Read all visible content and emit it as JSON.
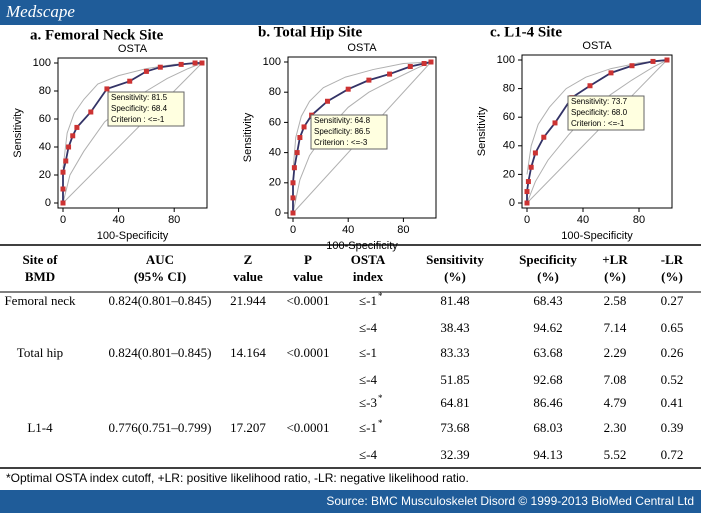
{
  "header": {
    "brand": "Medscape"
  },
  "chart_data": [
    {
      "type": "line",
      "panel_label": "a. Femoral Neck Site",
      "title": "OSTA",
      "xlabel": "100-Specificity",
      "ylabel": "Sensitivity",
      "xlim": [
        0,
        100
      ],
      "ylim": [
        0,
        100
      ],
      "xticks": [
        0,
        40,
        80
      ],
      "yticks": [
        0,
        20,
        40,
        60,
        80,
        100
      ],
      "annotation": [
        "Sensitivity: 81.5",
        "Specificity: 68.4",
        "Criterion : <=-1"
      ],
      "series": [
        {
          "color": "#333366",
          "marker_color": "#cc3333",
          "x": [
            0,
            0,
            0,
            2,
            4,
            7,
            10,
            20,
            31.6,
            48,
            60,
            70,
            85,
            95,
            100
          ],
          "values": [
            0,
            10,
            22,
            30,
            40,
            48,
            54,
            65,
            81.5,
            87,
            94,
            97,
            99,
            100,
            100
          ]
        },
        {
          "color": "#b0b0b0",
          "x": [
            0,
            3,
            8,
            15,
            25,
            40,
            60,
            80,
            100
          ],
          "values": [
            25,
            50,
            64,
            74,
            85,
            91,
            96,
            99,
            100
          ]
        },
        {
          "color": "#b0b0b0",
          "x": [
            0,
            5,
            15,
            30,
            45,
            60,
            75,
            90,
            100
          ],
          "values": [
            0,
            20,
            37,
            58,
            70,
            80,
            89,
            96,
            100
          ]
        },
        {
          "color": "#b0b0b0",
          "x": [
            0,
            100
          ],
          "values": [
            0,
            100
          ]
        }
      ]
    },
    {
      "type": "line",
      "panel_label": "b. Total Hip Site",
      "title": "OSTA",
      "xlabel": "100-Specificity",
      "ylabel": "Sensitivity",
      "xlim": [
        0,
        100
      ],
      "ylim": [
        0,
        100
      ],
      "xticks": [
        0,
        40,
        80
      ],
      "yticks": [
        0,
        20,
        40,
        60,
        80,
        100
      ],
      "annotation": [
        "Sensitivity: 64.8",
        "Specificity: 86.5",
        "Criterion : <=-3"
      ],
      "series": [
        {
          "color": "#333366",
          "marker_color": "#cc3333",
          "x": [
            0,
            0,
            0,
            1,
            3,
            5,
            8,
            13.5,
            25,
            40,
            55,
            70,
            85,
            95,
            100
          ],
          "values": [
            0,
            10,
            20,
            30,
            40,
            50,
            57,
            64.8,
            74,
            82,
            88,
            92,
            97,
            99,
            100
          ]
        },
        {
          "color": "#b0b0b0",
          "x": [
            0,
            2,
            6,
            12,
            22,
            38,
            58,
            80,
            100
          ],
          "values": [
            28,
            50,
            64,
            74,
            83,
            90,
            95,
            99,
            100
          ]
        },
        {
          "color": "#b0b0b0",
          "x": [
            0,
            5,
            12,
            25,
            40,
            55,
            72,
            90,
            100
          ],
          "values": [
            0,
            22,
            38,
            55,
            70,
            80,
            88,
            96,
            100
          ]
        },
        {
          "color": "#b0b0b0",
          "x": [
            0,
            100
          ],
          "values": [
            0,
            100
          ]
        }
      ]
    },
    {
      "type": "line",
      "panel_label": "c. L1-4 Site",
      "title": "OSTA",
      "xlabel": "100-Specificity",
      "ylabel": "Sensitivity",
      "xlim": [
        0,
        100
      ],
      "ylim": [
        0,
        100
      ],
      "xticks": [
        0,
        40,
        80
      ],
      "yticks": [
        0,
        20,
        40,
        60,
        80,
        100
      ],
      "annotation": [
        "Sensitivity: 73.7",
        "Specificity: 68.0",
        "Criterion : <=-1"
      ],
      "series": [
        {
          "color": "#333366",
          "marker_color": "#cc3333",
          "x": [
            0,
            0,
            1,
            3,
            6,
            12,
            20,
            32,
            45,
            60,
            75,
            90,
            100
          ],
          "values": [
            0,
            8,
            15,
            25,
            35,
            46,
            56,
            73.7,
            82,
            91,
            96,
            99,
            100
          ]
        },
        {
          "color": "#b0b0b0",
          "x": [
            0,
            3,
            8,
            16,
            28,
            42,
            60,
            80,
            100
          ],
          "values": [
            20,
            40,
            55,
            67,
            80,
            88,
            94,
            98,
            100
          ]
        },
        {
          "color": "#b0b0b0",
          "x": [
            0,
            6,
            15,
            30,
            45,
            60,
            75,
            90,
            100
          ],
          "values": [
            0,
            15,
            30,
            48,
            64,
            76,
            86,
            95,
            100
          ]
        },
        {
          "color": "#b0b0b0",
          "x": [
            0,
            100
          ],
          "values": [
            0,
            100
          ]
        }
      ]
    }
  ],
  "table": {
    "columns": [
      [
        "Site of",
        "BMD"
      ],
      [
        "AUC",
        "(95% CI)"
      ],
      [
        "Z",
        "value"
      ],
      [
        "P",
        "value"
      ],
      [
        "OSTA",
        "index"
      ],
      [
        "Sensitivity",
        "(%)"
      ],
      [
        "Specificity",
        "(%)"
      ],
      [
        "+LR",
        "(%)"
      ],
      [
        "-LR",
        "(%)"
      ]
    ],
    "rows": [
      [
        "Femoral neck",
        "0.824(0.801–0.845)",
        "21.944",
        "<0.0001",
        {
          "text": "≤-1",
          "note": "*"
        },
        "81.48",
        "68.43",
        "2.58",
        "0.27"
      ],
      [
        null,
        null,
        null,
        null,
        {
          "text": "≤-4"
        },
        "38.43",
        "94.62",
        "7.14",
        "0.65"
      ],
      [
        "Total hip",
        "0.824(0.801–0.845)",
        "14.164",
        "<0.0001",
        {
          "text": "≤-1"
        },
        "83.33",
        "63.68",
        "2.29",
        "0.26"
      ],
      [
        null,
        null,
        null,
        null,
        {
          "text": "≤-4"
        },
        "51.85",
        "92.68",
        "7.08",
        "0.52"
      ],
      [
        null,
        null,
        null,
        null,
        {
          "text": "≤-3",
          "note": "*"
        },
        "64.81",
        "86.46",
        "4.79",
        "0.41"
      ],
      [
        "L1-4",
        "0.776(0.751–0.799)",
        "17.207",
        "<0.0001",
        {
          "text": "≤-1",
          "note": "*"
        },
        "73.68",
        "68.03",
        "2.30",
        "0.39"
      ],
      [
        null,
        null,
        null,
        null,
        {
          "text": "≤-4"
        },
        "32.39",
        "94.13",
        "5.52",
        "0.72"
      ]
    ]
  },
  "footnote": "*Optimal OSTA index cutoff, +LR: positive likelihood ratio, -LR: negative likelihood ratio.",
  "source": "Source: BMC Musculoskelet Disord © 1999-2013 BioMed Central Ltd"
}
